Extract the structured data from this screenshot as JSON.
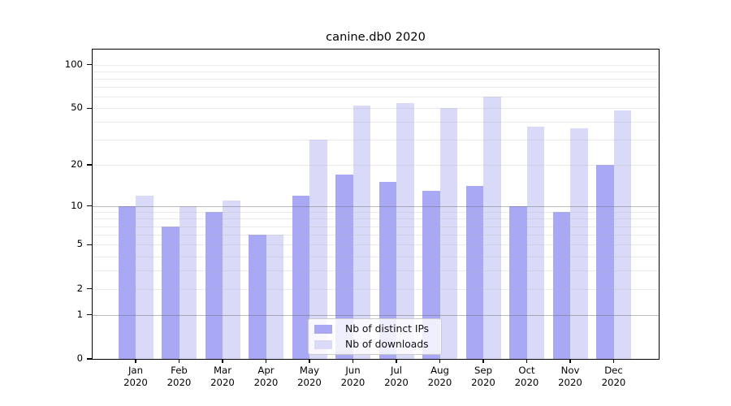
{
  "title": "canine.db0 2020",
  "chart_data": {
    "type": "bar",
    "title": "canine.db0 2020",
    "categories": [
      "Jan 2020",
      "Feb 2020",
      "Mar 2020",
      "Apr 2020",
      "May 2020",
      "Jun 2020",
      "Jul 2020",
      "Aug 2020",
      "Sep 2020",
      "Oct 2020",
      "Nov 2020",
      "Dec 2020"
    ],
    "x_months": [
      "Jan",
      "Feb",
      "Mar",
      "Apr",
      "May",
      "Jun",
      "Jul",
      "Aug",
      "Sep",
      "Oct",
      "Nov",
      "Dec"
    ],
    "x_year": "2020",
    "series": [
      {
        "name": "Nb of distinct IPs",
        "color": "#a8a8f5",
        "values": [
          10,
          7,
          9,
          6,
          12,
          17,
          15,
          13,
          14,
          10,
          9,
          20
        ]
      },
      {
        "name": "Nb of downloads",
        "color": "#d9d9f8",
        "values": [
          12,
          10,
          11,
          6,
          30,
          52,
          54,
          50,
          60,
          37,
          36,
          48
        ]
      }
    ],
    "xlabel": "",
    "ylabel": "",
    "yscale": "log1p",
    "y_ticks": [
      0,
      1,
      2,
      5,
      10,
      20,
      50,
      100
    ],
    "ylim": [
      0,
      127
    ],
    "grid": "on",
    "grid_minor_values": [
      2,
      3,
      4,
      5,
      6,
      7,
      8,
      9,
      20,
      30,
      40,
      50,
      60,
      70,
      80,
      90,
      100
    ],
    "grid_major_values": [
      1,
      10
    ],
    "legend": {
      "position": "lower center",
      "labels": [
        "Nb of distinct IPs",
        "Nb of downloads"
      ]
    }
  }
}
